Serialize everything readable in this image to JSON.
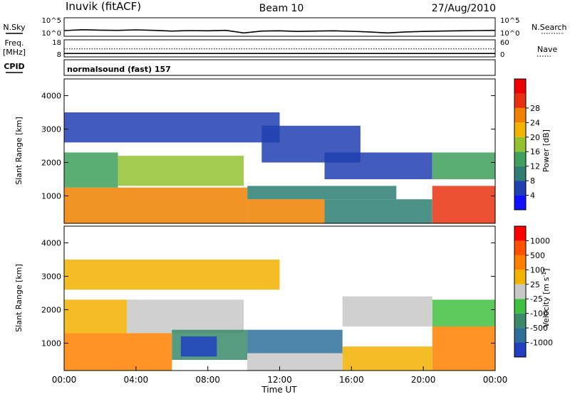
{
  "header": {
    "station": "Inuvik (fitACF)",
    "beam": "Beam 10",
    "date": "27/Aug/2010"
  },
  "cpid_label": "CPID",
  "cpid_text": "normalsound (fast) 157",
  "chart_data": [
    {
      "type": "line",
      "panel": "noise",
      "left_label": "N.Sky",
      "right_label": "N.Search",
      "left_ticks": [
        "10^5",
        "10^0"
      ],
      "right_ticks": [
        "10^5",
        "10^0"
      ],
      "y_scale": "log",
      "series": [
        {
          "name": "N.Sky",
          "style": "solid",
          "x": [
            0,
            1,
            2,
            3,
            4,
            5,
            6,
            7,
            8,
            9,
            10,
            11,
            12,
            13,
            14,
            15,
            16,
            17,
            18,
            19,
            20,
            21,
            22,
            23,
            24
          ],
          "y": [
            35,
            60,
            45,
            40,
            55,
            40,
            25,
            35,
            30,
            40,
            8,
            25,
            30,
            20,
            25,
            30,
            22,
            15,
            8,
            15,
            20,
            25,
            30,
            35,
            40
          ]
        },
        {
          "name": "N.Search",
          "style": "dotted",
          "x": [],
          "y": []
        }
      ]
    },
    {
      "type": "line",
      "panel": "frequency",
      "left_label": "Freq.",
      "left_unit": "[MHz]",
      "right_label": "Nave",
      "left_ticks": [
        "18",
        "8"
      ],
      "right_ticks": [
        "60",
        "0"
      ],
      "series": [
        {
          "name": "Freq.",
          "style": "solid",
          "x": [
            0,
            24
          ],
          "y": [
            10,
            10
          ]
        },
        {
          "name": "Nave",
          "style": "dotted",
          "x": [
            0,
            24
          ],
          "y": [
            28,
            28
          ]
        }
      ]
    },
    {
      "type": "heatmap",
      "panel": "power",
      "ylabel": "Slant Range [km]",
      "yticks": [
        "1000",
        "2000",
        "3000",
        "4000"
      ],
      "ylim": [
        180,
        4500
      ],
      "xlim": [
        0,
        24
      ],
      "colorbar": {
        "label": "Power [dB]",
        "ticks": [
          "4",
          "8",
          "12",
          "16",
          "20",
          "24",
          "28"
        ],
        "colors": [
          "#1010ff",
          "#2040b0",
          "#2e7f72",
          "#3ea05a",
          "#92c230",
          "#f2b200",
          "#f08000",
          "#e83010",
          "#ee0000"
        ]
      },
      "regions": [
        {
          "x0": 0.0,
          "x1": 10.2,
          "y0": 180,
          "y1": 1250,
          "level": 6
        },
        {
          "x0": 0.0,
          "x1": 3.0,
          "y0": 1250,
          "y1": 2300,
          "level": 3
        },
        {
          "x0": 3.0,
          "x1": 10.0,
          "y0": 1300,
          "y1": 2200,
          "level": 4
        },
        {
          "x0": 10.2,
          "x1": 14.5,
          "y0": 180,
          "y1": 900,
          "level": 6
        },
        {
          "x0": 10.2,
          "x1": 18.5,
          "y0": 900,
          "y1": 1300,
          "level": 2
        },
        {
          "x0": 14.5,
          "x1": 20.5,
          "y0": 1500,
          "y1": 2300,
          "level": 1
        },
        {
          "x0": 14.5,
          "x1": 20.5,
          "y0": 180,
          "y1": 900,
          "level": 2
        },
        {
          "x0": 20.5,
          "x1": 24.0,
          "y0": 180,
          "y1": 1300,
          "level": 7
        },
        {
          "x0": 20.5,
          "x1": 24.0,
          "y0": 1500,
          "y1": 2300,
          "level": 3
        },
        {
          "x0": 11.0,
          "x1": 16.5,
          "y0": 2000,
          "y1": 3100,
          "level": 1
        },
        {
          "x0": 0.0,
          "x1": 12.0,
          "y0": 2600,
          "y1": 3500,
          "level": 1
        }
      ]
    },
    {
      "type": "heatmap",
      "panel": "velocity",
      "ylabel": "Slant Range [km]",
      "yticks": [
        "1000",
        "2000",
        "3000",
        "4000"
      ],
      "ylim": [
        180,
        4500
      ],
      "xlim": [
        0,
        24
      ],
      "xticks": [
        "00:00",
        "04:00",
        "08:00",
        "12:00",
        "16:00",
        "20:00",
        "00:00"
      ],
      "xlabel": "Time UT",
      "colorbar": {
        "label": "Velocity [m s",
        "label_sup": "-1",
        "label_tail": "]",
        "ticks": [
          "1000",
          "500",
          "100",
          "25",
          "-25",
          "-100",
          "-500",
          "-1000"
        ],
        "colors": [
          "#2040c0",
          "#2e6f9a",
          "#3a8a6a",
          "#40c040",
          "#c8c8c8",
          "#f2b200",
          "#ff8000",
          "#ff5000",
          "#ff0000"
        ]
      },
      "regions": [
        {
          "x0": 0.0,
          "x1": 6.0,
          "y0": 180,
          "y1": 1300,
          "level": 6
        },
        {
          "x0": 0.0,
          "x1": 3.5,
          "y0": 1300,
          "y1": 2300,
          "level": 5
        },
        {
          "x0": 3.5,
          "x1": 10.0,
          "y0": 1300,
          "y1": 2300,
          "level": 4
        },
        {
          "x0": 6.0,
          "x1": 10.2,
          "y0": 500,
          "y1": 1400,
          "level": 2
        },
        {
          "x0": 6.5,
          "x1": 8.5,
          "y0": 600,
          "y1": 1200,
          "level": 0
        },
        {
          "x0": 10.2,
          "x1": 15.5,
          "y0": 180,
          "y1": 700,
          "level": 4
        },
        {
          "x0": 10.2,
          "x1": 15.5,
          "y0": 700,
          "y1": 1400,
          "level": 1
        },
        {
          "x0": 15.5,
          "x1": 20.5,
          "y0": 180,
          "y1": 900,
          "level": 5
        },
        {
          "x0": 15.5,
          "x1": 20.5,
          "y0": 1500,
          "y1": 2400,
          "level": 4
        },
        {
          "x0": 20.5,
          "x1": 24.0,
          "y0": 180,
          "y1": 1500,
          "level": 6
        },
        {
          "x0": 20.5,
          "x1": 24.0,
          "y0": 1500,
          "y1": 2300,
          "level": 3
        },
        {
          "x0": 0.0,
          "x1": 12.0,
          "y0": 2600,
          "y1": 3500,
          "level": 5
        }
      ]
    }
  ]
}
